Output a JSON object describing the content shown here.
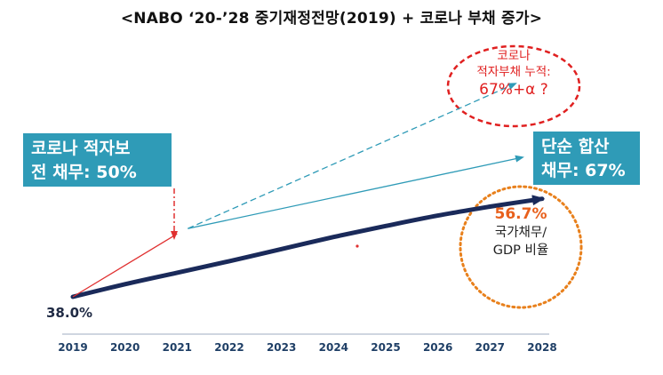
{
  "title": "<NABO ‘20-’28 중기재정전망(2019) + 코로나 부채 증가>",
  "annotations": {
    "left_box": [
      "코로나 적자보",
      "전 채무: 50%"
    ],
    "right_box": [
      "단순 합산",
      "채무: 67%"
    ],
    "oval": [
      "코로나",
      "적자부채 누적:",
      "67%+α ?"
    ],
    "circle_value": "56.7%",
    "circle_label": [
      "국가채무/",
      "GDP 비율"
    ],
    "start_value": "38.0%"
  },
  "colors": {
    "main_line": "#1a2a5a",
    "red_line": "#e03030",
    "teal": "#2f9bb7",
    "oval_red": "#e02020",
    "circle_orange": "#e8801c",
    "axis_labels": "#1f3f66"
  },
  "chart_data": {
    "type": "line",
    "title": "<NABO ‘20-’28 중기재정전망(2019) + 코로나 부채 증가>",
    "xlabel": "",
    "ylabel": "",
    "x": [
      "2019",
      "2020",
      "2021",
      "2022",
      "2023",
      "2024",
      "2025",
      "2026",
      "2027",
      "2028"
    ],
    "series": [
      {
        "values": [
          38.0,
          40.4,
          42.6,
          44.8,
          47.1,
          49.4,
          51.5,
          53.5,
          55.2,
          56.7
        ]
      },
      {
        "values": [
          38.0,
          44.0,
          50.0,
          null,
          null,
          null,
          null,
          null,
          null,
          null
        ]
      },
      {
        "values": [
          null,
          null,
          50.0,
          null,
          null,
          null,
          null,
          null,
          null,
          67.0
        ]
      },
      {
        "values": [
          null,
          null,
          50.0,
          null,
          null,
          null,
          null,
          null,
          null,
          75.0
        ]
      }
    ],
    "grid": false,
    "legend": "none"
  }
}
